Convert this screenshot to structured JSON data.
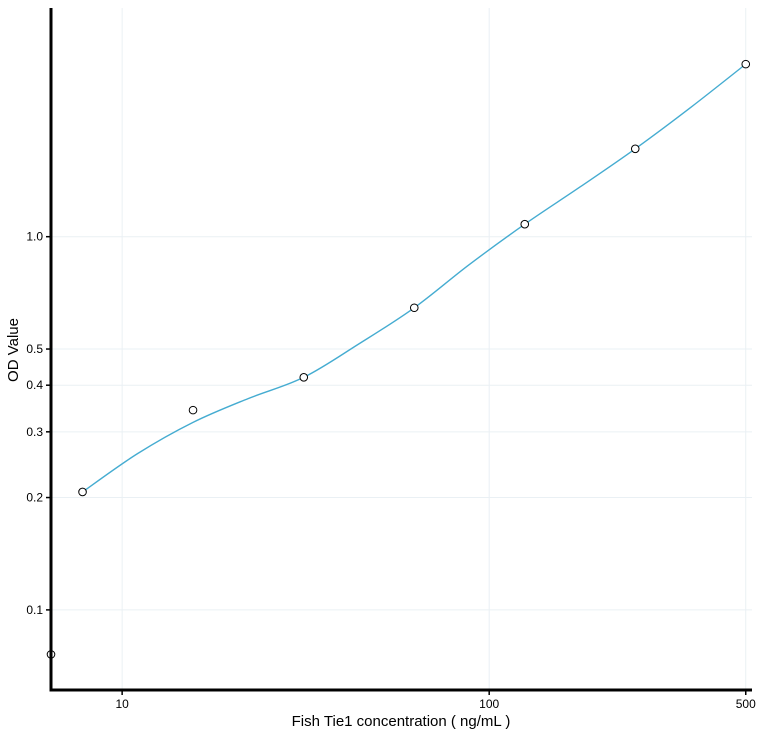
{
  "chart_data": {
    "type": "scatter",
    "xlabel": "Fish Tie1 concentration ( ng/mL )",
    "ylabel": "OD Value",
    "x_scale": "log",
    "y_scale": "log",
    "xlim": [
      6.4,
      520
    ],
    "ylim": [
      0.061,
      4.1
    ],
    "x_ticks": [
      10,
      100,
      500
    ],
    "x_tick_labels": [
      "10",
      "100",
      "500"
    ],
    "y_ticks": [
      0.1,
      0.2,
      0.3,
      0.4,
      0.5,
      1.0
    ],
    "y_tick_labels": [
      "0.1",
      "0.2",
      "0.3",
      "0.4",
      "0.5",
      "1.0"
    ],
    "grid": true,
    "series": [
      {
        "kind": "points",
        "x": [
          6.25,
          7.8,
          15.6,
          31.25,
          62.5,
          125,
          250,
          500
        ],
        "y": [
          0.076,
          0.207,
          0.343,
          0.42,
          0.645,
          1.08,
          1.72,
          2.9
        ]
      },
      {
        "kind": "fitted-curve",
        "color": "#45acd1",
        "x": [
          7.8,
          11,
          15.6,
          22,
          31.25,
          44,
          62.5,
          88,
          125,
          177,
          250,
          354,
          500
        ],
        "y": [
          0.207,
          0.262,
          0.318,
          0.368,
          0.42,
          0.515,
          0.645,
          0.84,
          1.08,
          1.36,
          1.72,
          2.22,
          2.9
        ]
      }
    ]
  }
}
